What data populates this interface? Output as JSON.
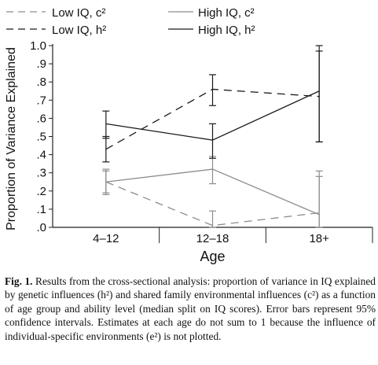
{
  "chart_data": {
    "type": "line",
    "categories": [
      "4–12",
      "12–18",
      "18+"
    ],
    "xlabel": "Age",
    "ylabel": "Proportion of Variance Explained",
    "ylim": [
      0,
      1
    ],
    "y_ticks": [
      "1.0",
      ".9",
      ".8",
      ".7",
      ".6",
      ".5",
      ".4",
      ".3",
      ".2",
      ".1",
      ".0"
    ],
    "grid": false,
    "legend_position": "top",
    "series": [
      {
        "name": "Low IQ, c²",
        "style": "dashed",
        "color": "#8c8c8c",
        "values": [
          0.25,
          0.01,
          0.08
        ],
        "lower": [
          0.18,
          0.0,
          0.0
        ],
        "upper": [
          0.32,
          0.09,
          0.31
        ]
      },
      {
        "name": "Low IQ, h²",
        "style": "dashed",
        "color": "#1a1a1a",
        "values": [
          0.43,
          0.76,
          0.72
        ],
        "lower": [
          0.36,
          0.67,
          0.47
        ],
        "upper": [
          0.5,
          0.84,
          1.0
        ]
      },
      {
        "name": "High IQ, c²",
        "style": "solid",
        "color": "#8c8c8c",
        "values": [
          0.25,
          0.32,
          0.07
        ],
        "lower": [
          0.19,
          0.24,
          0.0
        ],
        "upper": [
          0.31,
          0.39,
          0.28
        ]
      },
      {
        "name": "High IQ, h²",
        "style": "solid",
        "color": "#1a1a1a",
        "values": [
          0.57,
          0.48,
          0.75
        ],
        "lower": [
          0.49,
          0.38,
          0.47
        ],
        "upper": [
          0.64,
          0.57,
          0.97
        ]
      }
    ]
  },
  "caption": {
    "label": "Fig. 1.",
    "text": "Results from the cross-sectional analysis: proportion of variance in IQ explained by genetic influences (h²) and shared family environmental influences (c²) as a function of age group and ability level (median split on IQ scores). Error bars represent 95% confidence intervals. Estimates at each age do not sum to 1 because the influence of individual-specific environments (e²) is not plotted."
  }
}
